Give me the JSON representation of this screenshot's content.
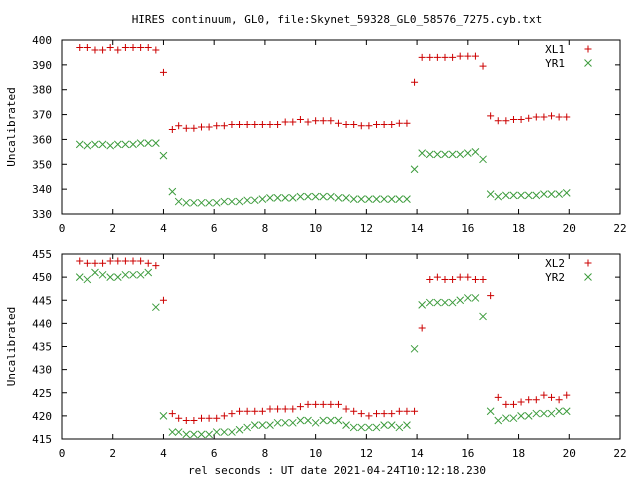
{
  "title": "HIRES continuum, GL0, file:Skynet_59328_GL0_58576_7275.cyb.txt",
  "xlabel": "rel seconds : UT date 2021-04-24T10:12:18.230",
  "chart_data": [
    {
      "type": "scatter",
      "ylabel": "Uncalibrated",
      "xlim": [
        0,
        22
      ],
      "ylim": [
        330,
        400
      ],
      "xticks": [
        0,
        2,
        4,
        6,
        8,
        10,
        12,
        14,
        16,
        18,
        20,
        22
      ],
      "yticks": [
        330,
        340,
        350,
        360,
        370,
        380,
        390,
        400
      ],
      "legend_position": "top-right",
      "series": [
        {
          "name": "XL1",
          "marker": "plus",
          "color": "#cc0000",
          "x": [
            0.7,
            1.0,
            1.3,
            1.6,
            1.9,
            2.2,
            2.5,
            2.8,
            3.1,
            3.4,
            3.7,
            4.0,
            4.35,
            4.6,
            4.9,
            5.2,
            5.5,
            5.8,
            6.1,
            6.4,
            6.7,
            7.0,
            7.3,
            7.6,
            7.9,
            8.2,
            8.5,
            8.8,
            9.1,
            9.4,
            9.7,
            10.0,
            10.3,
            10.6,
            10.9,
            11.2,
            11.5,
            11.8,
            12.1,
            12.4,
            12.7,
            13.0,
            13.3,
            13.6,
            13.9,
            14.2,
            14.5,
            14.8,
            15.1,
            15.4,
            15.7,
            16.0,
            16.3,
            16.6,
            16.9,
            17.2,
            17.5,
            17.8,
            18.1,
            18.4,
            18.7,
            19.0,
            19.3,
            19.6,
            19.9
          ],
          "y": [
            397,
            397,
            396,
            396,
            397,
            396,
            397,
            397,
            397,
            397,
            396,
            387,
            364,
            365.5,
            364.5,
            364.5,
            365,
            365,
            365.5,
            365.5,
            366,
            366,
            366,
            366,
            366,
            366,
            366,
            367,
            367,
            368,
            367,
            367.5,
            367.5,
            367.5,
            366.5,
            366,
            366,
            365.5,
            365.5,
            366,
            366,
            366,
            366.5,
            366.5,
            383,
            393,
            393,
            393,
            393,
            393,
            393.5,
            393.5,
            393.5,
            389.5,
            369.5,
            367.5,
            367.5,
            368,
            368,
            368.5,
            369,
            369,
            369.5,
            369,
            369
          ]
        },
        {
          "name": "YR1",
          "marker": "cross",
          "color": "#3c9b3c",
          "x": [
            0.7,
            1.0,
            1.3,
            1.6,
            1.9,
            2.2,
            2.5,
            2.8,
            3.1,
            3.4,
            3.7,
            4.0,
            4.35,
            4.6,
            4.9,
            5.2,
            5.5,
            5.8,
            6.1,
            6.4,
            6.7,
            7.0,
            7.3,
            7.6,
            7.9,
            8.2,
            8.5,
            8.8,
            9.1,
            9.4,
            9.7,
            10.0,
            10.3,
            10.6,
            10.9,
            11.2,
            11.5,
            11.8,
            12.1,
            12.4,
            12.7,
            13.0,
            13.3,
            13.6,
            13.9,
            14.2,
            14.5,
            14.8,
            15.1,
            15.4,
            15.7,
            16.0,
            16.3,
            16.6,
            16.9,
            17.2,
            17.5,
            17.8,
            18.1,
            18.4,
            18.7,
            19.0,
            19.3,
            19.6,
            19.9
          ],
          "y": [
            358,
            357.5,
            358,
            358,
            357.5,
            358,
            358,
            358,
            358.5,
            358.5,
            358.5,
            353.5,
            339,
            335,
            334.5,
            334.5,
            334.5,
            334.5,
            334.5,
            335,
            335,
            335,
            335.5,
            335.5,
            336,
            336.5,
            336.5,
            336.5,
            336.5,
            337,
            337,
            337,
            337,
            337,
            336.5,
            336.5,
            336,
            336,
            336,
            336,
            336,
            336,
            336,
            336,
            348,
            354.5,
            354,
            354,
            354,
            354,
            354,
            354.5,
            355,
            352,
            338,
            337,
            337.5,
            337.5,
            337.5,
            337.5,
            337.5,
            338,
            338,
            338,
            338.5
          ]
        }
      ]
    },
    {
      "type": "scatter",
      "ylabel": "Uncalibrated",
      "xlim": [
        0,
        22
      ],
      "ylim": [
        415,
        455
      ],
      "xticks": [
        0,
        2,
        4,
        6,
        8,
        10,
        12,
        14,
        16,
        18,
        20,
        22
      ],
      "yticks": [
        415,
        420,
        425,
        430,
        435,
        440,
        445,
        450,
        455
      ],
      "legend_position": "top-right",
      "series": [
        {
          "name": "XL2",
          "marker": "plus",
          "color": "#cc0000",
          "x": [
            0.7,
            1.0,
            1.3,
            1.6,
            1.9,
            2.2,
            2.5,
            2.8,
            3.1,
            3.4,
            3.7,
            4.0,
            4.35,
            4.6,
            4.9,
            5.2,
            5.5,
            5.8,
            6.1,
            6.4,
            6.7,
            7.0,
            7.3,
            7.6,
            7.9,
            8.2,
            8.5,
            8.8,
            9.1,
            9.4,
            9.7,
            10.0,
            10.3,
            10.6,
            10.9,
            11.2,
            11.5,
            11.8,
            12.1,
            12.4,
            12.7,
            13.0,
            13.3,
            13.6,
            13.9,
            14.2,
            14.5,
            14.8,
            15.1,
            15.4,
            15.7,
            16.0,
            16.3,
            16.6,
            16.9,
            17.2,
            17.5,
            17.8,
            18.1,
            18.4,
            18.7,
            19.0,
            19.3,
            19.6,
            19.9
          ],
          "y": [
            453.5,
            453,
            453,
            453,
            453.5,
            453.5,
            453.5,
            453.5,
            453.5,
            453,
            452.5,
            445,
            420.5,
            419.5,
            419,
            419,
            419.5,
            419.5,
            419.5,
            420,
            420.5,
            421,
            421,
            421,
            421,
            421.5,
            421.5,
            421.5,
            421.5,
            422,
            422.5,
            422.5,
            422.5,
            422.5,
            422.5,
            421.5,
            421,
            420.5,
            420,
            420.5,
            420.5,
            420.5,
            421,
            421,
            421,
            439,
            449.5,
            450,
            449.5,
            449.5,
            450,
            450,
            449.5,
            449.5,
            446,
            424,
            422.5,
            422.5,
            423,
            423.5,
            423.5,
            424.5,
            424,
            423.5,
            424.5
          ]
        },
        {
          "name": "YR2",
          "marker": "cross",
          "color": "#3c9b3c",
          "x": [
            0.7,
            1.0,
            1.3,
            1.6,
            1.9,
            2.2,
            2.5,
            2.8,
            3.1,
            3.4,
            3.7,
            4.0,
            4.35,
            4.6,
            4.9,
            5.2,
            5.5,
            5.8,
            6.1,
            6.4,
            6.7,
            7.0,
            7.3,
            7.6,
            7.9,
            8.2,
            8.5,
            8.8,
            9.1,
            9.4,
            9.7,
            10.0,
            10.3,
            10.6,
            10.9,
            11.2,
            11.5,
            11.8,
            12.1,
            12.4,
            12.7,
            13.0,
            13.3,
            13.6,
            13.9,
            14.2,
            14.5,
            14.8,
            15.1,
            15.4,
            15.7,
            16.0,
            16.3,
            16.6,
            16.9,
            17.2,
            17.5,
            17.8,
            18.1,
            18.4,
            18.7,
            19.0,
            19.3,
            19.6,
            19.9
          ],
          "y": [
            450,
            449.5,
            451,
            450.5,
            450,
            450,
            450.5,
            450.5,
            450.5,
            451,
            443.5,
            420,
            416.5,
            416.5,
            416,
            416,
            416,
            416,
            416.5,
            416.5,
            416.5,
            417,
            417.5,
            418,
            418,
            418,
            418.5,
            418.5,
            418.5,
            419,
            419,
            418.5,
            419,
            419,
            419,
            418,
            417.5,
            417.5,
            417.5,
            417.5,
            418,
            418,
            417.5,
            418,
            434.5,
            444,
            444.5,
            444.5,
            444.5,
            444.5,
            445,
            445.5,
            445.5,
            441.5,
            421,
            419,
            419.5,
            419.5,
            420,
            420,
            420.5,
            420.5,
            420.5,
            421,
            421
          ]
        }
      ]
    }
  ]
}
